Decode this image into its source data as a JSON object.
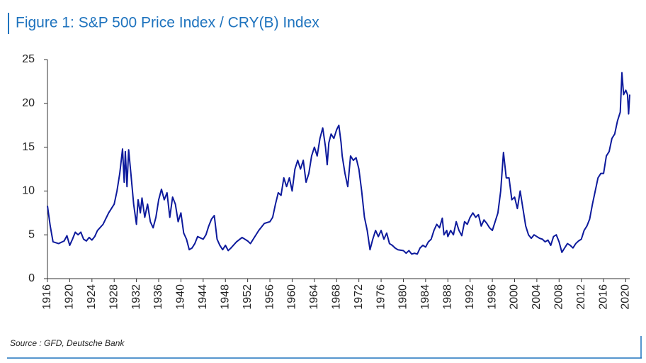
{
  "chart_data": {
    "type": "line",
    "title": "Figure 1: S&P 500 Price Index / CRY(B) Index",
    "source": "Source : GFD, Deutsche Bank",
    "color": "#0d1a9c",
    "xlim": [
      1916,
      2020.7
    ],
    "xticks": [
      1916,
      1920,
      1924,
      1928,
      1932,
      1936,
      1940,
      1944,
      1948,
      1952,
      1956,
      1960,
      1964,
      1968,
      1972,
      1976,
      1980,
      1984,
      1988,
      1992,
      1996,
      2000,
      2004,
      2008,
      2012,
      2016,
      2020
    ],
    "ylim": [
      0,
      25
    ],
    "yticks": [
      0,
      5,
      10,
      15,
      20,
      25
    ],
    "x": [
      1916,
      1916.5,
      1917,
      1918,
      1919,
      1919.5,
      1920,
      1920.5,
      1921,
      1921.5,
      1922,
      1922.5,
      1923,
      1923.5,
      1924,
      1924.5,
      1925,
      1926,
      1927,
      1928,
      1928.5,
      1929,
      1929.5,
      1929.8,
      1930,
      1930.3,
      1930.6,
      1931,
      1931.5,
      1932,
      1932.3,
      1932.7,
      1933,
      1933.5,
      1934,
      1934.5,
      1935,
      1935.5,
      1936,
      1936.5,
      1937,
      1937.5,
      1938,
      1938.5,
      1939,
      1939.5,
      1940,
      1940.5,
      1941,
      1941.5,
      1942,
      1942.5,
      1943,
      1944,
      1944.5,
      1945,
      1945.5,
      1946,
      1946.5,
      1947,
      1947.5,
      1948,
      1948.5,
      1949,
      1950,
      1951,
      1952,
      1952.5,
      1953,
      1954,
      1955,
      1956,
      1956.5,
      1957,
      1957.5,
      1958,
      1958.5,
      1959,
      1959.5,
      1960,
      1960.5,
      1961,
      1961.5,
      1962,
      1962.5,
      1963,
      1963.5,
      1964,
      1964.5,
      1965,
      1965.5,
      1966,
      1966.3,
      1966.6,
      1967,
      1967.5,
      1968,
      1968.4,
      1968.8,
      1969,
      1969.5,
      1970,
      1970.5,
      1971,
      1971.5,
      1972,
      1972.5,
      1973,
      1973.5,
      1974,
      1974.5,
      1975,
      1975.5,
      1976,
      1976.5,
      1977,
      1977.5,
      1978,
      1978.5,
      1979,
      1980,
      1980.5,
      1981,
      1981.5,
      1982,
      1982.5,
      1983,
      1983.5,
      1984,
      1984.5,
      1985,
      1985.5,
      1986,
      1986.5,
      1987,
      1987.3,
      1987.8,
      1988,
      1988.5,
      1989,
      1989.5,
      1990,
      1990.5,
      1991,
      1991.5,
      1992,
      1992.5,
      1993,
      1993.5,
      1994,
      1994.5,
      1995,
      1995.5,
      1996,
      1996.5,
      1997,
      1997.5,
      1998,
      1998.5,
      1999,
      1999.5,
      2000,
      2000.5,
      2001,
      2001.5,
      2002,
      2002.5,
      2003,
      2003.5,
      2004,
      2004.5,
      2005,
      2005.5,
      2006,
      2006.5,
      2007,
      2007.5,
      2008,
      2008.5,
      2009,
      2009.5,
      2010,
      2010.5,
      2011,
      2011.5,
      2012,
      2012.5,
      2013,
      2013.5,
      2014,
      2014.5,
      2015,
      2015.5,
      2016,
      2016.5,
      2017,
      2017.5,
      2018,
      2018.5,
      2019,
      2019.3,
      2019.6,
      2020,
      2020.3,
      2020.5,
      2020.7
    ],
    "values": [
      8.3,
      6,
      4.2,
      4.0,
      4.3,
      4.9,
      3.8,
      4.5,
      5.3,
      5.0,
      5.3,
      4.5,
      4.3,
      4.7,
      4.4,
      4.8,
      5.5,
      6.2,
      7.5,
      8.5,
      10,
      12,
      14.8,
      11,
      14.5,
      10.5,
      14.7,
      12,
      8.5,
      6.2,
      9,
      7.5,
      9.2,
      7,
      8.5,
      6.5,
      5.8,
      7,
      9,
      10.2,
      9,
      9.8,
      7,
      9.3,
      8.5,
      6.5,
      7.5,
      5.2,
      4.5,
      3.3,
      3.5,
      4,
      4.8,
      4.5,
      5,
      6,
      6.8,
      7.2,
      4.5,
      3.8,
      3.3,
      3.8,
      3.2,
      3.5,
      4.2,
      4.7,
      4.3,
      4,
      4.5,
      5.5,
      6.3,
      6.5,
      7,
      8.5,
      9.8,
      9.5,
      11.5,
      10.5,
      11.5,
      10,
      12.5,
      13.5,
      12.5,
      13.5,
      11,
      12,
      14,
      15,
      14,
      16,
      17.2,
      15,
      13,
      15.5,
      16.5,
      16,
      17,
      17.5,
      15.5,
      14,
      12,
      10.5,
      14,
      13.5,
      13.8,
      12.5,
      10,
      7,
      5.5,
      3.3,
      4.5,
      5.5,
      4.8,
      5.5,
      4.5,
      5.2,
      4.0,
      3.8,
      3.5,
      3.3,
      3.2,
      2.9,
      3.2,
      2.8,
      2.9,
      2.8,
      3.5,
      3.8,
      3.6,
      4.2,
      4.5,
      5.5,
      6.2,
      5.8,
      6.9,
      5,
      5.5,
      4.8,
      5.5,
      5,
      6.5,
      5.5,
      4.9,
      6.5,
      6.2,
      7,
      7.5,
      7,
      7.3,
      6,
      6.7,
      6.3,
      5.8,
      5.5,
      6.5,
      7.5,
      10,
      14.4,
      11.5,
      11.5,
      9,
      9.3,
      8,
      10,
      8,
      6,
      5,
      4.6,
      5,
      4.8,
      4.6,
      4.5,
      4.2,
      4.4,
      3.8,
      4.8,
      5,
      4.2,
      3,
      3.5,
      4,
      3.8,
      3.5,
      4,
      4.3,
      4.5,
      5.5,
      6,
      6.8,
      8.5,
      10,
      11.5,
      12,
      12,
      14,
      14.5,
      16,
      16.5,
      18,
      19,
      23.5,
      21,
      21.5,
      21,
      18.8,
      21
    ]
  }
}
